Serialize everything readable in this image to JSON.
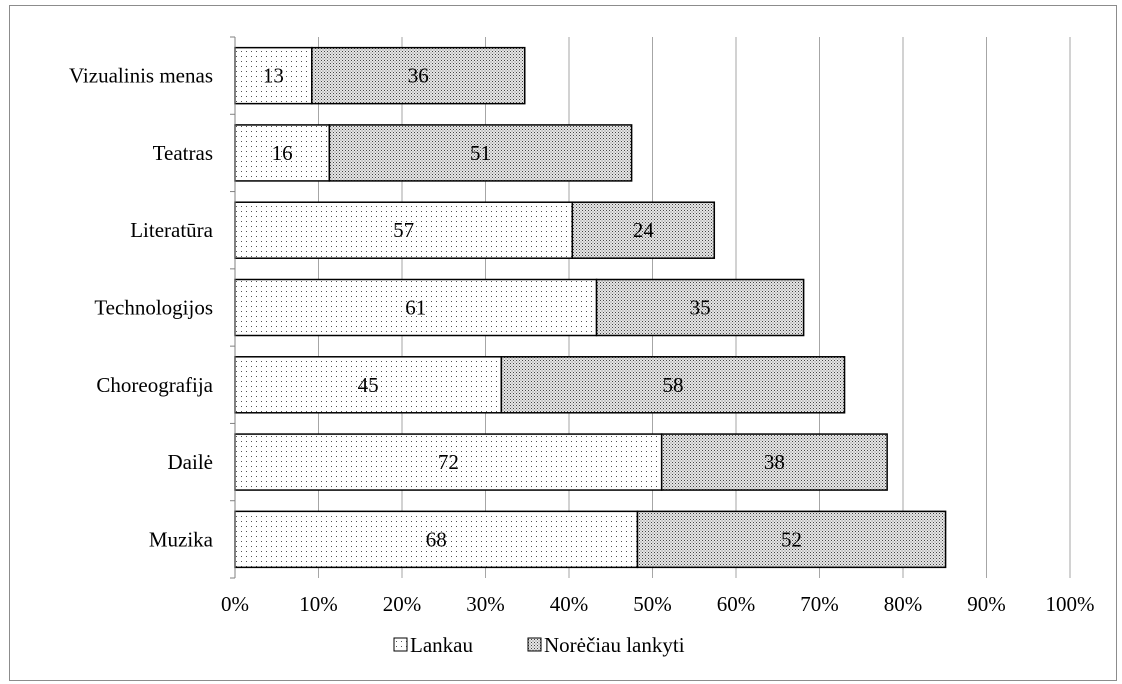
{
  "chart_data": {
    "type": "bar",
    "orientation": "horizontal",
    "stacked": true,
    "title": "",
    "xlabel": "",
    "ylabel": "",
    "xlim": [
      0,
      100
    ],
    "x_ticks": [
      "0%",
      "10%",
      "20%",
      "30%",
      "40%",
      "50%",
      "60%",
      "70%",
      "80%",
      "90%",
      "100%"
    ],
    "grid": "vertical",
    "legend_position": "bottom",
    "categories": [
      "Vizualinis menas",
      "Teatras",
      "Literatūra",
      "Technologijos",
      "Choreografija",
      "Dailė",
      "Muzika"
    ],
    "series": [
      {
        "name": "Lankau",
        "pattern": "dots",
        "labels": [
          13,
          16,
          57,
          61,
          45,
          72,
          68
        ],
        "values": [
          9.2,
          11.3,
          40.4,
          43.3,
          31.9,
          51.1,
          48.2
        ]
      },
      {
        "name": "Norėčiau lankyti",
        "pattern": "dense-dots",
        "labels": [
          36,
          51,
          24,
          35,
          58,
          38,
          52
        ],
        "values": [
          25.5,
          36.2,
          17.0,
          24.8,
          41.1,
          27.0,
          36.9
        ]
      }
    ]
  }
}
